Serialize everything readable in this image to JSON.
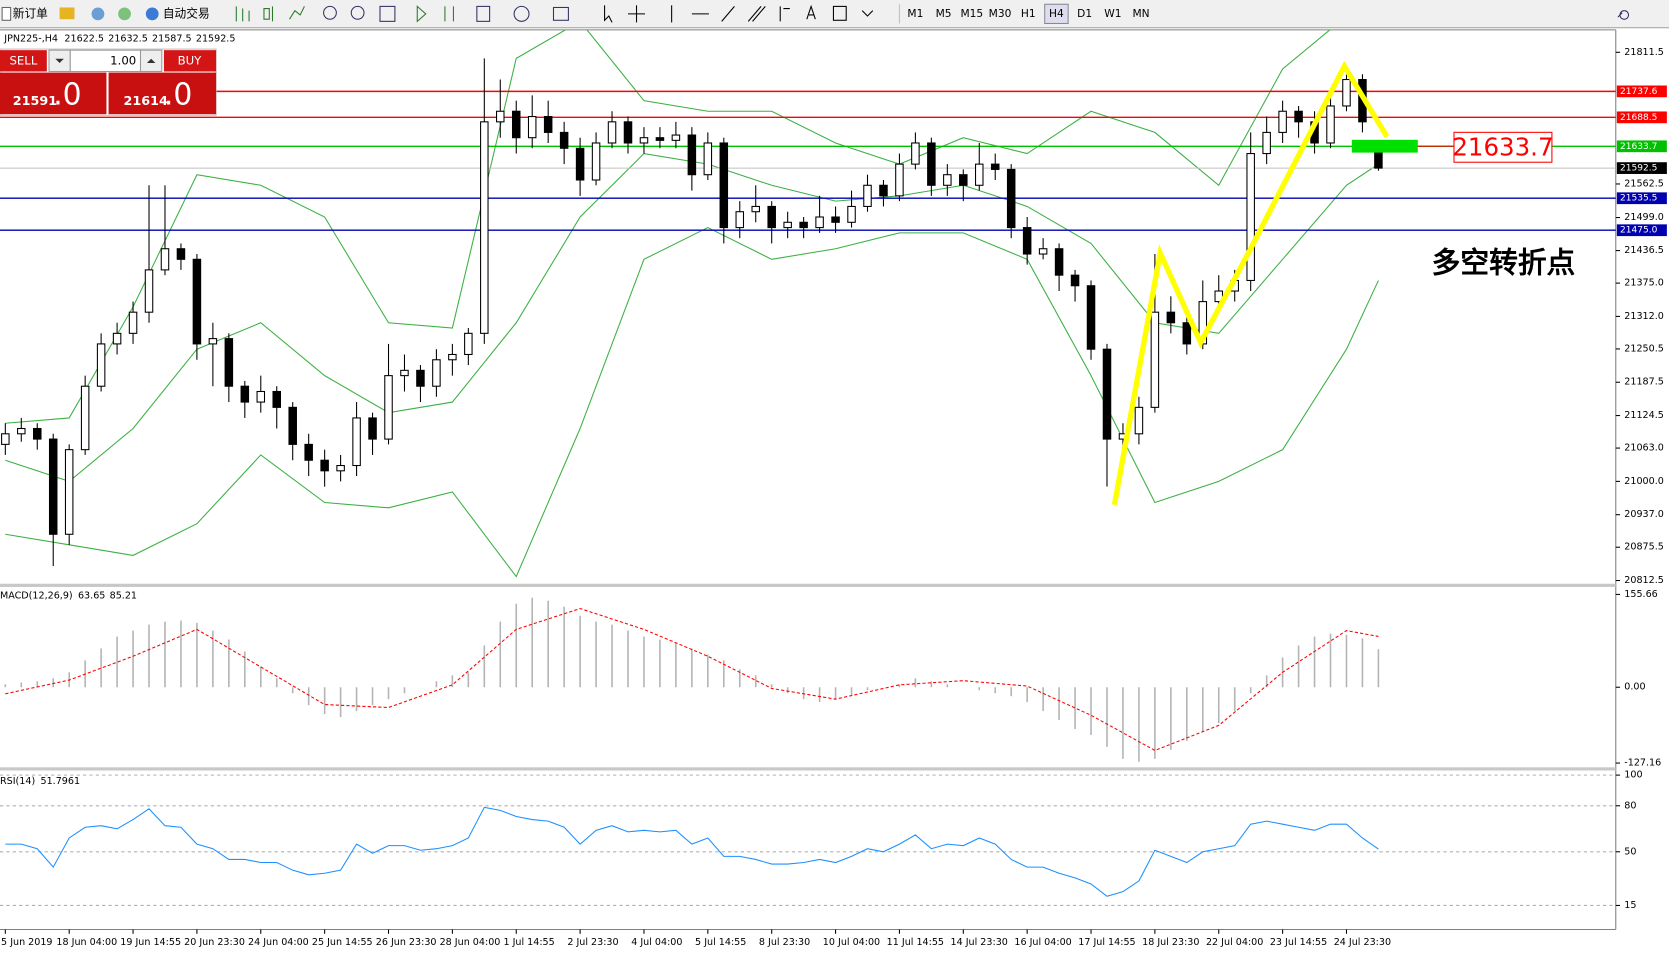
{
  "toolbar": {
    "new_order": "新订单",
    "auto_trading": "自动交易",
    "timeframes": [
      "M1",
      "M5",
      "M15",
      "M30",
      "H1",
      "H4",
      "D1",
      "W1",
      "MN"
    ],
    "active_timeframe": "H4"
  },
  "trade_panel": {
    "sell": "SELL",
    "buy": "BUY",
    "lots": "1.00",
    "bid": "21591",
    "bid_fraction": ".0",
    "ask": "21614",
    "ask_fraction": ".0"
  },
  "chart_data": [
    {
      "type": "candlestick",
      "title": "JPN225-,H4",
      "categories": [
        "5 Jun 2019",
        null,
        null,
        null,
        "18 Jun 04:00",
        null,
        null,
        null,
        "19 Jun 14:55",
        null,
        null,
        null,
        "20 Jun 23:30",
        null,
        null,
        null,
        "24 Jun 04:00",
        null,
        null,
        null,
        "25 Jun 14:55",
        null,
        null,
        null,
        "26 Jun 23:30",
        null,
        null,
        null,
        "28 Jun 04:00",
        null,
        null,
        null,
        "1 Jul 14:55",
        null,
        null,
        null,
        "2 Jul 23:30",
        null,
        null,
        null,
        "4 Jul 04:00",
        null,
        null,
        null,
        "5 Jul 14:55",
        null,
        null,
        null,
        "8 Jul 23:30",
        null,
        null,
        null,
        "10 Jul 04:00",
        null,
        null,
        null,
        "11 Jul 14:55",
        null,
        null,
        null,
        "14 Jul 23:30",
        null,
        null,
        null,
        "16 Jul 04:00",
        null,
        null,
        null,
        "17 Jul 14:55",
        null,
        null,
        null,
        "18 Jul 23:30",
        null,
        null,
        null,
        "22 Jul 04:00",
        null,
        null,
        null,
        "23 Jul 14:55",
        null,
        null,
        null,
        "24 Jul 23:30",
        null,
        null
      ],
      "ohlc": [
        [
          21070,
          21110,
          21050,
          21090
        ],
        [
          21090,
          21120,
          21075,
          21100
        ],
        [
          21100,
          21110,
          21060,
          21080
        ],
        [
          21080,
          21090,
          20840,
          20900
        ],
        [
          20900,
          21070,
          20880,
          21060
        ],
        [
          21060,
          21200,
          21050,
          21180
        ],
        [
          21180,
          21280,
          21170,
          21260
        ],
        [
          21260,
          21300,
          21240,
          21280
        ],
        [
          21280,
          21340,
          21260,
          21320
        ],
        [
          21320,
          21560,
          21300,
          21400
        ],
        [
          21400,
          21560,
          21390,
          21440
        ],
        [
          21440,
          21450,
          21400,
          21420
        ],
        [
          21420,
          21430,
          21230,
          21260
        ],
        [
          21260,
          21300,
          21180,
          21270
        ],
        [
          21270,
          21280,
          21150,
          21180
        ],
        [
          21180,
          21190,
          21120,
          21150
        ],
        [
          21150,
          21200,
          21130,
          21170
        ],
        [
          21170,
          21180,
          21100,
          21140
        ],
        [
          21140,
          21150,
          21040,
          21070
        ],
        [
          21070,
          21090,
          21010,
          21040
        ],
        [
          21040,
          21060,
          20990,
          21020
        ],
        [
          21020,
          21050,
          21000,
          21030
        ],
        [
          21030,
          21150,
          21010,
          21120
        ],
        [
          21120,
          21130,
          21050,
          21080
        ],
        [
          21080,
          21260,
          21070,
          21200
        ],
        [
          21200,
          21240,
          21170,
          21210
        ],
        [
          21210,
          21220,
          21150,
          21180
        ],
        [
          21180,
          21250,
          21160,
          21230
        ],
        [
          21230,
          21260,
          21200,
          21240
        ],
        [
          21240,
          21290,
          21220,
          21280
        ],
        [
          21280,
          21800,
          21260,
          21680
        ],
        [
          21680,
          21760,
          21650,
          21700
        ],
        [
          21700,
          21720,
          21620,
          21650
        ],
        [
          21650,
          21730,
          21630,
          21690
        ],
        [
          21690,
          21720,
          21640,
          21660
        ],
        [
          21660,
          21680,
          21600,
          21630
        ],
        [
          21630,
          21650,
          21540,
          21570
        ],
        [
          21570,
          21660,
          21560,
          21640
        ],
        [
          21640,
          21700,
          21630,
          21680
        ],
        [
          21680,
          21690,
          21620,
          21640
        ],
        [
          21640,
          21670,
          21620,
          21650
        ],
        [
          21650,
          21670,
          21630,
          21645
        ],
        [
          21645,
          21680,
          21630,
          21655
        ],
        [
          21655,
          21670,
          21550,
          21580
        ],
        [
          21580,
          21660,
          21570,
          21640
        ],
        [
          21640,
          21650,
          21450,
          21480
        ],
        [
          21480,
          21530,
          21460,
          21510
        ],
        [
          21510,
          21560,
          21490,
          21520
        ],
        [
          21520,
          21530,
          21450,
          21480
        ],
        [
          21480,
          21510,
          21460,
          21490
        ],
        [
          21490,
          21500,
          21460,
          21480
        ],
        [
          21480,
          21540,
          21470,
          21500
        ],
        [
          21500,
          21520,
          21470,
          21490
        ],
        [
          21490,
          21550,
          21480,
          21520
        ],
        [
          21520,
          21580,
          21510,
          21560
        ],
        [
          21560,
          21570,
          21520,
          21540
        ],
        [
          21540,
          21620,
          21530,
          21600
        ],
        [
          21600,
          21660,
          21590,
          21640
        ],
        [
          21640,
          21650,
          21540,
          21560
        ],
        [
          21560,
          21600,
          21540,
          21580
        ],
        [
          21580,
          21590,
          21530,
          21560
        ],
        [
          21560,
          21640,
          21550,
          21600
        ],
        [
          21600,
          21620,
          21570,
          21590
        ],
        [
          21590,
          21600,
          21460,
          21480
        ],
        [
          21480,
          21500,
          21410,
          21430
        ],
        [
          21430,
          21460,
          21420,
          21440
        ],
        [
          21440,
          21450,
          21360,
          21390
        ],
        [
          21390,
          21400,
          21340,
          21370
        ],
        [
          21370,
          21380,
          21230,
          21250
        ],
        [
          21250,
          21260,
          20990,
          21080
        ],
        [
          21080,
          21110,
          21040,
          21090
        ],
        [
          21090,
          21160,
          21070,
          21140
        ],
        [
          21140,
          21430,
          21130,
          21320
        ],
        [
          21320,
          21350,
          21280,
          21300
        ],
        [
          21300,
          21310,
          21240,
          21260
        ],
        [
          21260,
          21380,
          21250,
          21340
        ],
        [
          21340,
          21390,
          21320,
          21360
        ],
        [
          21360,
          21400,
          21340,
          21380
        ],
        [
          21380,
          21660,
          21360,
          21620
        ],
        [
          21620,
          21690,
          21600,
          21660
        ],
        [
          21660,
          21720,
          21640,
          21700
        ],
        [
          21700,
          21710,
          21650,
          21680
        ],
        [
          21680,
          21700,
          21620,
          21640
        ],
        [
          21640,
          21730,
          21630,
          21710
        ],
        [
          21710,
          21770,
          21700,
          21760
        ],
        [
          21760,
          21770,
          21660,
          21680
        ],
        [
          21622.5,
          21632.5,
          21587.5,
          21592.5
        ]
      ],
      "bull_color": "#ffffff",
      "bear_color": "#000000",
      "ylim": [
        20806.4,
        21853.9
      ],
      "yticks": [
        21811.5,
        21562.5,
        {
          "value": 21499,
          "label": "21499.0"
        },
        21436.5,
        {
          "value": 21375,
          "label": "21375.0"
        },
        {
          "value": 21312,
          "label": "21312.0"
        },
        21250.5,
        21187.5,
        21124.5,
        {
          "value": 21063,
          "label": "21063.0"
        },
        {
          "value": 21000,
          "label": "21000.0"
        },
        {
          "value": 20937,
          "label": "20937.0"
        },
        20875.5,
        20812.5
      ],
      "bands": {
        "color": "#3cb043",
        "x": [
          0,
          4,
          8,
          12,
          16,
          20,
          24,
          28,
          32,
          36,
          40,
          44,
          48,
          52,
          56,
          60,
          64,
          68,
          72,
          76,
          80,
          84,
          86
        ],
        "upper": [
          21110,
          21120,
          21330,
          21580,
          21560,
          21500,
          21300,
          21290,
          21800,
          21870,
          21720,
          21700,
          21700,
          21640,
          21600,
          21650,
          21620,
          21700,
          21660,
          21560,
          21780,
          21880,
          21900
        ],
        "middle": [
          21040,
          21000,
          21100,
          21250,
          21300,
          21200,
          21130,
          21150,
          21300,
          21500,
          21620,
          21600,
          21560,
          21530,
          21540,
          21560,
          21520,
          21450,
          21300,
          21280,
          21420,
          21560,
          21600
        ],
        "lower": [
          20900,
          20880,
          20860,
          20920,
          21050,
          20960,
          20950,
          20980,
          20820,
          21100,
          21420,
          21480,
          21420,
          21440,
          21470,
          21470,
          21420,
          21200,
          20960,
          21000,
          21060,
          21250,
          21380
        ]
      },
      "levels": [
        {
          "value": 21737.6,
          "color": "#ff0000"
        },
        {
          "value": 21688.5,
          "color": "#ff0000"
        },
        {
          "value": 21633.7,
          "color": "#00c000"
        },
        {
          "value": 21535.5,
          "color": "#0000b0"
        },
        {
          "value": 21475,
          "label": "21475.0",
          "color": "#0000b0"
        }
      ],
      "current_color": "#c0c0c0",
      "annotation": "多空转折点",
      "annotation_color": "#22b822"
    },
    {
      "type": "bar",
      "title": "MACD(12,26,9)",
      "values": [
        5,
        8,
        10,
        15,
        25,
        45,
        65,
        85,
        95,
        105,
        110,
        112,
        108,
        95,
        80,
        60,
        35,
        15,
        -10,
        -30,
        -45,
        -50,
        -40,
        -30,
        -20,
        -10,
        0,
        10,
        20,
        25,
        70,
        110,
        140,
        150,
        145,
        135,
        120,
        110,
        105,
        95,
        85,
        80,
        75,
        65,
        55,
        45,
        30,
        20,
        5,
        -10,
        -20,
        -25,
        -20,
        -15,
        -5,
        0,
        5,
        15,
        10,
        5,
        0,
        -5,
        -10,
        -15,
        -25,
        -40,
        -55,
        -70,
        -80,
        -100,
        -120,
        -125,
        -120,
        -105,
        -90,
        -75,
        -60,
        -40,
        -10,
        20,
        50,
        70,
        85,
        90,
        88,
        82,
        63.65
      ],
      "color": "#b4b4b4",
      "signal": {
        "color": "#ff0000",
        "x": [
          0,
          4,
          8,
          12,
          16,
          20,
          24,
          28,
          32,
          36,
          40,
          44,
          48,
          52,
          56,
          60,
          64,
          68,
          72,
          76,
          80,
          84,
          86
        ],
        "values": [
          -11,
          12,
          52,
          97,
          34,
          -29,
          -34,
          4,
          97,
          132,
          97,
          52,
          -2,
          -20,
          4,
          11,
          2,
          -47,
          -106,
          -64,
          25,
          95,
          85.21
        ]
      },
      "ylim": [
        -134.3,
        168.2
      ],
      "yticks": [
        155.66,
        {
          "value": 0,
          "label": "0.00"
        },
        -127.16
      ]
    },
    {
      "type": "line",
      "title": "RSI(14)",
      "values": [
        55,
        55,
        52,
        40,
        59,
        66,
        67,
        65,
        71,
        78,
        67,
        66,
        55,
        52,
        45,
        45,
        43,
        43,
        38,
        35,
        36,
        38,
        55,
        49,
        54,
        54,
        51,
        52,
        54,
        59,
        79,
        77,
        73,
        71,
        70,
        66,
        55,
        64,
        67,
        63,
        64,
        63,
        64,
        55,
        59,
        47,
        47,
        45,
        42,
        42,
        43,
        45,
        43,
        47,
        52,
        50,
        55,
        61,
        52,
        55,
        54,
        59,
        55,
        45,
        40,
        40,
        36,
        33,
        29,
        21,
        24,
        31,
        51,
        47,
        43,
        50,
        52,
        54,
        68,
        70,
        68,
        66,
        64,
        68,
        68,
        59,
        51.7961
      ],
      "color": "#1e90ff",
      "ylim": [
        0,
        103
      ],
      "yticks": [
        100,
        80,
        50,
        15
      ],
      "grid": true
    }
  ]
}
